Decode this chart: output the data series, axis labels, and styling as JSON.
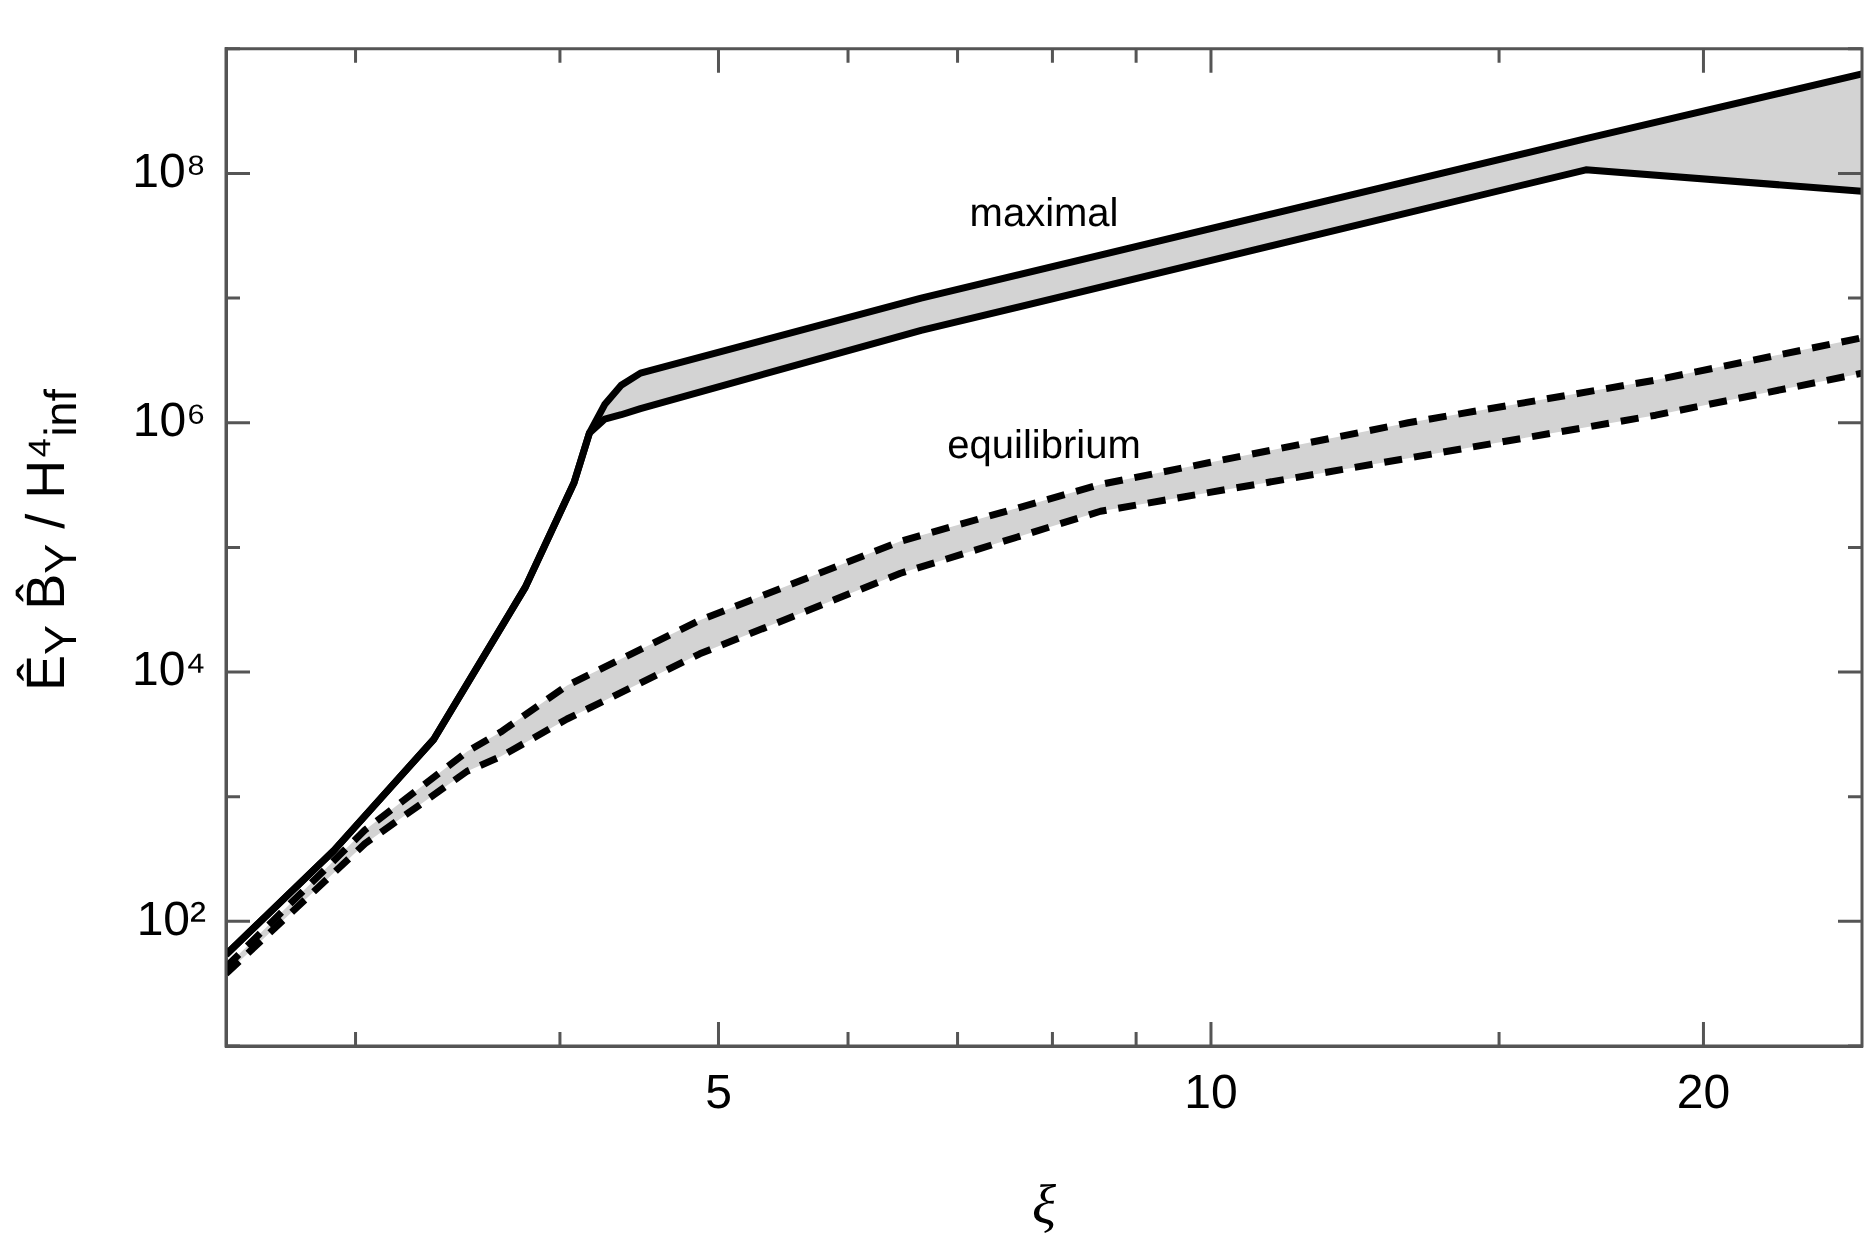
{
  "chart_data": {
    "type": "line",
    "xlabel": "ξ",
    "ylabel": "Ê$_{Y}$ B̂$_{Y}$ / H⁴$_{inf}$",
    "log": "xy",
    "xlim": [
      2.5,
      25
    ],
    "xticks": [
      {
        "value": 3,
        "label": null
      },
      {
        "value": 4,
        "label": null
      },
      5,
      {
        "value": 6,
        "label": null
      },
      {
        "value": 7,
        "label": null
      },
      {
        "value": 8,
        "label": null
      },
      {
        "value": 9,
        "label": null
      },
      10,
      {
        "value": 15,
        "label": null
      },
      20
    ],
    "ylim": [
      10,
      1000000000
    ],
    "yticks": [
      {
        "value": 10,
        "label": null
      },
      {
        "value": 100,
        "label": "10²"
      },
      {
        "value": 1000,
        "label": null
      },
      {
        "value": 10000,
        "label": "10⁴"
      },
      {
        "value": 100000,
        "label": null
      },
      {
        "value": 1000000,
        "label": "10⁶"
      },
      {
        "value": 10000000,
        "label": null
      },
      {
        "value": 100000000,
        "label": "10⁸"
      },
      {
        "value": 1000000000,
        "label": null
      }
    ],
    "series": [
      {
        "name": "maximal",
        "color": "#000000",
        "line_style": "solid",
        "x": [
          2.5,
          2.91,
          3.35,
          3.81,
          4.08,
          4.17,
          4.26,
          4.36,
          4.48,
          6.65,
          16.95,
          25
        ],
        "values": [
          54,
          370,
          2900,
          48000,
          330000,
          830000,
          1400000,
          2000000,
          2500000,
          10000000,
          190000000,
          630000000
        ],
        "upper": [
          54,
          370,
          2900,
          48000,
          330000,
          830000,
          1400000,
          2000000,
          2500000,
          10000000,
          190000000,
          630000000
        ],
        "lower": [
          54,
          370,
          2900,
          48000,
          330000,
          830000,
          1070000,
          1160000,
          1300000,
          5500000,
          107000000,
          72000000
        ]
      },
      {
        "color": "#000000",
        "line_style": "solid",
        "x": [
          2.5,
          2.91,
          3.35,
          3.81,
          4.08,
          4.17,
          4.26,
          4.36,
          4.48,
          6.65,
          16.95,
          25
        ],
        "values": [
          54,
          370,
          2900,
          48000,
          330000,
          830000,
          1070000,
          1160000,
          1300000,
          5500000,
          107000000,
          72000000
        ]
      },
      {
        "name": "equilibrium",
        "color": "#000000",
        "line_style": "dashed",
        "x": [
          2.5,
          3.04,
          3.51,
          3.68,
          4.04,
          4.87,
          6.46,
          8.56,
          13.2,
          18.7,
          25
        ],
        "values": [
          43,
          540,
          2300,
          3300,
          7800,
          26000,
          112000,
          320000,
          1000000,
          2200000,
          4800000
        ],
        "upper": [
          43,
          540,
          2300,
          3300,
          7800,
          26000,
          112000,
          320000,
          1000000,
          2200000,
          4800000
        ],
        "lower": [
          38,
          420,
          1600,
          2100,
          4200,
          14000,
          62000,
          195000,
          520000,
          1150000,
          2500000
        ]
      },
      {
        "color": "#000000",
        "line_style": "dashed",
        "x": [
          2.5,
          3.04,
          3.51,
          3.68,
          4.04,
          4.87,
          6.46,
          8.56,
          13.2,
          18.7,
          25
        ],
        "values": [
          38,
          420,
          1600,
          2100,
          4200,
          14000,
          62000,
          195000,
          520000,
          1150000,
          2500000
        ]
      }
    ]
  }
}
